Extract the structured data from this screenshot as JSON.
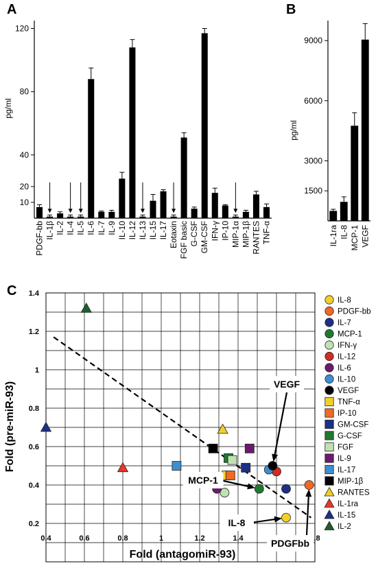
{
  "chart_data": [
    {
      "panel_label": "A",
      "type": "bar",
      "ylabel": "pg/ml",
      "y_ticks": [
        10,
        20,
        40,
        80,
        120
      ],
      "ylim": [
        0,
        125
      ],
      "categories": [
        "PDGF-bb",
        "IL-1β",
        "IL-2",
        "IL-4",
        "IL-5",
        "IL-6",
        "IL-7",
        "IL-9",
        "IL-10",
        "IL-12",
        "IL-13",
        "IL-15",
        "IL-17",
        "Eotaxin",
        "FGF basic",
        "G-CSF",
        "GM-CSF",
        "IFN-γ",
        "IP-10",
        "MIP-1α",
        "MIP-1β",
        "RANTES",
        "TNF-α"
      ],
      "values": [
        7,
        1,
        3,
        1,
        1,
        88,
        4,
        4,
        25,
        108,
        1,
        11,
        17,
        1,
        51,
        6,
        117,
        16,
        8,
        1,
        4,
        15,
        7
      ],
      "errors": [
        1.5,
        1,
        1,
        1,
        1,
        7,
        0.5,
        1,
        4,
        5,
        1,
        4,
        1,
        1,
        3,
        1,
        3,
        3,
        0.5,
        1,
        1,
        2,
        2
      ],
      "arrows_on": [
        "IL-1β",
        "IL-4",
        "IL-5",
        "IL-13",
        "Eotaxin",
        "MIP-1α"
      ]
    },
    {
      "panel_label": "B",
      "type": "bar",
      "ylabel": "pg/ml",
      "y_ticks": [
        1500,
        3000,
        6000,
        9000
      ],
      "ylim": [
        0,
        10000
      ],
      "categories": [
        "IL-1ra",
        "IL-8",
        "MCP-1",
        "VEGF"
      ],
      "values": [
        500,
        950,
        4750,
        9050
      ],
      "errors": [
        80,
        250,
        650,
        800
      ]
    },
    {
      "panel_label": "C",
      "type": "scatter",
      "xlabel": "Fold (antagomiR-93)",
      "ylabel": "Fold (pre-miR-93)",
      "xlim": [
        0.4,
        1.8
      ],
      "ylim": [
        0.0,
        1.4
      ],
      "x_ticks": [
        0.4,
        0.6,
        0.8,
        1.0,
        1.2,
        1.4,
        1.6,
        1.8
      ],
      "y_ticks": [
        0.2,
        0.4,
        0.6,
        0.8,
        1,
        1.2,
        1.4
      ],
      "grid": true,
      "trendline": {
        "style": "dashed",
        "from": [
          0.44,
          1.17
        ],
        "to": [
          1.78,
          0.23
        ]
      },
      "series": [
        {
          "name": "IL-8",
          "shape": "circle",
          "color": "#f2cf2a",
          "x": 1.65,
          "y": 0.23
        },
        {
          "name": "PDGF-bb",
          "shape": "circle",
          "color": "#ef6a25",
          "x": 1.77,
          "y": 0.4
        },
        {
          "name": "IL-7",
          "shape": "circle",
          "color": "#1e2f86",
          "x": 1.65,
          "y": 0.38
        },
        {
          "name": "MCP-1",
          "shape": "circle",
          "color": "#1f7a2f",
          "x": 1.51,
          "y": 0.38
        },
        {
          "name": "IFN-γ",
          "shape": "circle",
          "color": "#bfe3b0",
          "x": 1.33,
          "y": 0.36
        },
        {
          "name": "IL-12",
          "shape": "circle",
          "color": "#d22b24",
          "x": 1.6,
          "y": 0.47
        },
        {
          "name": "IL-6",
          "shape": "circle",
          "color": "#6b1b6f",
          "x": 1.29,
          "y": 0.38
        },
        {
          "name": "IL-10",
          "shape": "circle",
          "color": "#3c8fd0",
          "x": 1.56,
          "y": 0.48
        },
        {
          "name": "VEGF",
          "shape": "circle",
          "color": "#000000",
          "x": 1.58,
          "y": 0.5
        },
        {
          "name": "TNF-α",
          "shape": "square",
          "color": "#f2cf2a",
          "x": 1.34,
          "y": 0.45
        },
        {
          "name": "IP-10",
          "shape": "square",
          "color": "#ef6a25",
          "x": 1.36,
          "y": 0.45
        },
        {
          "name": "GM-CSF",
          "shape": "square",
          "color": "#1e2f86",
          "x": 1.44,
          "y": 0.49
        },
        {
          "name": "G-CSF",
          "shape": "square",
          "color": "#1f7a2f",
          "x": 1.35,
          "y": 0.54
        },
        {
          "name": "FGF",
          "shape": "square",
          "color": "#bfe3b0",
          "x": 1.37,
          "y": 0.53
        },
        {
          "name": "IL-9",
          "shape": "square",
          "color": "#6b1b6f",
          "x": 1.46,
          "y": 0.59
        },
        {
          "name": "IL-17",
          "shape": "square",
          "color": "#3c8fd0",
          "x": 1.08,
          "y": 0.5
        },
        {
          "name": "MIP-1β",
          "shape": "square",
          "color": "#000000",
          "x": 1.27,
          "y": 0.59
        },
        {
          "name": "RANTES",
          "shape": "triangle",
          "color": "#f2cf2a",
          "x": 1.32,
          "y": 0.69
        },
        {
          "name": "IL-1ra",
          "shape": "triangle",
          "color": "#e8382a",
          "x": 0.8,
          "y": 0.49
        },
        {
          "name": "IL-15",
          "shape": "triangle",
          "color": "#1e2f86",
          "x": 0.4,
          "y": 0.7
        },
        {
          "name": "IL-2",
          "shape": "triangle",
          "color": "#1f5f2a",
          "x": 0.61,
          "y": 1.32
        }
      ],
      "callouts": [
        {
          "text": "VEGF",
          "target": "VEGF"
        },
        {
          "text": "MCP-1",
          "target": "MCP-1"
        },
        {
          "text": "IL-8",
          "target": "IL-8"
        },
        {
          "text": "PDGFbb",
          "target": "PDGF-bb"
        }
      ]
    }
  ]
}
